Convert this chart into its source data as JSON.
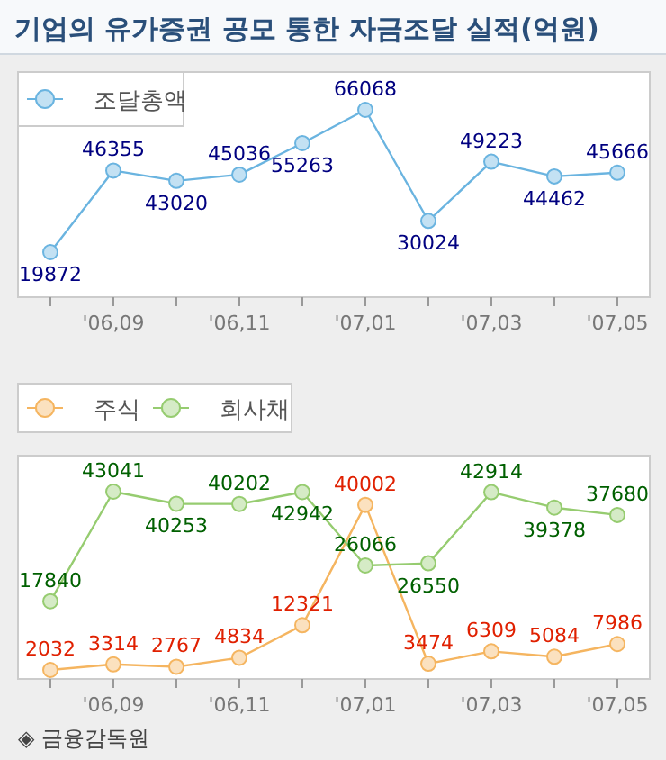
{
  "chart_data": [
    {
      "type": "line",
      "title": "기업의 유가증권 공모 통한 자금조달 실적(억원)",
      "categories": [
        null,
        "'06,09",
        null,
        "'06,11",
        null,
        "'07,01",
        null,
        "'07,03",
        null,
        "'07,05"
      ],
      "series": [
        {
          "name": "조달총액",
          "color": "#6ab4e0",
          "values": [
            19872,
            46355,
            43020,
            45036,
            55263,
            66068,
            30024,
            49223,
            44462,
            45666
          ]
        }
      ],
      "data_labels": true,
      "marker": "circle",
      "legend": "top left",
      "grid": false
    },
    {
      "type": "line",
      "categories": [
        null,
        "'06,09",
        null,
        "'06,11",
        null,
        "'07,01",
        null,
        "'07,03",
        null,
        "'07,05"
      ],
      "series": [
        {
          "name": "주식",
          "color": "#f5b560",
          "values": [
            2032,
            3314,
            2767,
            4834,
            12321,
            40002,
            3474,
            6309,
            5084,
            7986
          ]
        },
        {
          "name": "회사채",
          "color": "#96cc70",
          "values": [
            17840,
            43041,
            40253,
            40202,
            42942,
            26066,
            26550,
            42914,
            39378,
            37680
          ]
        }
      ],
      "data_labels": true,
      "marker": "circle",
      "legend": "top left",
      "grid": false,
      "annotations": [
        "◈ 금융감독원"
      ]
    }
  ]
}
